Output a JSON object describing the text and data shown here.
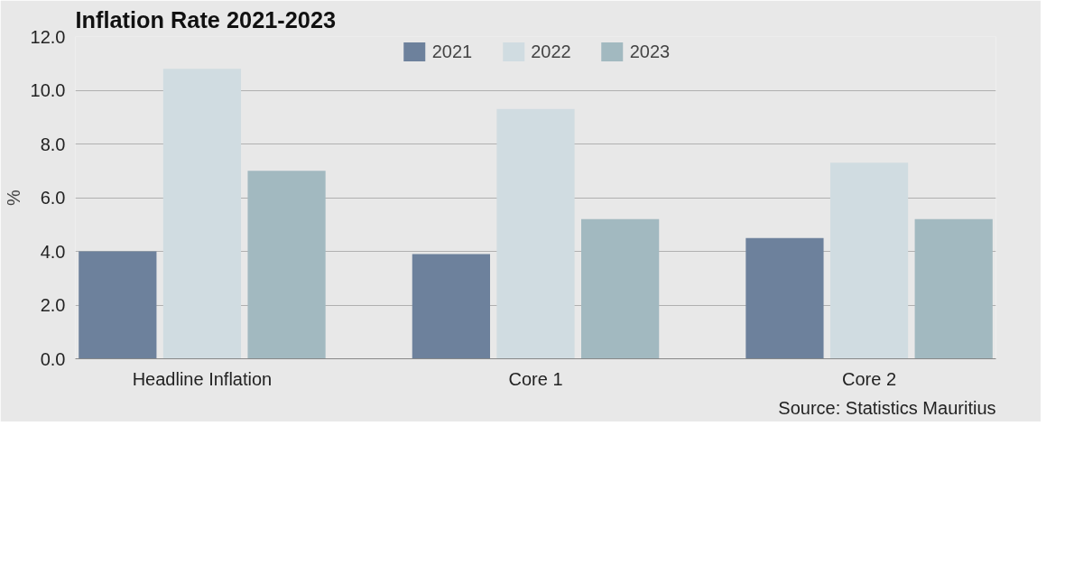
{
  "chart_data": {
    "type": "bar",
    "title": "Inflation Rate 2021-2023",
    "ylabel": "%",
    "categories": [
      "Headline Inflation",
      "Core 1",
      "Core 2"
    ],
    "series": [
      {
        "name": "2021",
        "color": "#6d819c",
        "values": [
          4.0,
          3.9,
          4.5
        ]
      },
      {
        "name": "2022",
        "color": "#d0dce1",
        "values": [
          10.8,
          9.3,
          7.3
        ]
      },
      {
        "name": "2023",
        "color": "#a2b9c0",
        "values": [
          7.0,
          5.2,
          5.2
        ]
      }
    ],
    "ylim": [
      0,
      12
    ],
    "yticks": [
      {
        "value": 0,
        "label": "0.0"
      },
      {
        "value": 2,
        "label": "2.0"
      },
      {
        "value": 4,
        "label": "4.0"
      },
      {
        "value": 6,
        "label": "6.0"
      },
      {
        "value": 8,
        "label": "8.0"
      },
      {
        "value": 10,
        "label": "10.0"
      },
      {
        "value": 12,
        "label": "12.0"
      }
    ],
    "grid": "y",
    "legend": "top",
    "annotations": [
      "Source: Statistics Mauritius"
    ]
  }
}
